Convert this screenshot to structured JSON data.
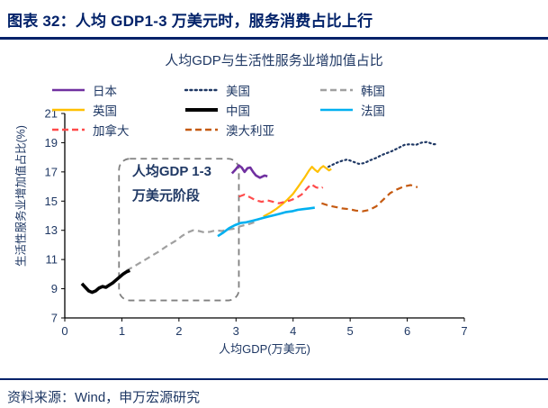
{
  "header": {
    "title": "图表 32：人均 GDP1-3 万美元时，服务消费占比上行"
  },
  "footer": {
    "source": "资料来源：Wind，申万宏源研究"
  },
  "colors": {
    "accent_navy": "#002169",
    "chart_text_navy": "#1F3864",
    "axis_black": "#000000",
    "annotation_gray": "#808080"
  },
  "chart_data": {
    "type": "line",
    "title": "人均GDP与生活性服务业增加值占比",
    "xlabel": "人均GDP(万美元)",
    "ylabel": "生活性服务业增加值占比(%)",
    "xlim": [
      0,
      7
    ],
    "ylim": [
      7,
      21
    ],
    "xticks": [
      0,
      1,
      2,
      3,
      4,
      5,
      6,
      7
    ],
    "yticks": [
      7,
      9,
      11,
      13,
      15,
      17,
      19,
      21
    ],
    "grid": false,
    "legend_position": "top",
    "annotation": {
      "text_lines": [
        "人均GDP 1-3",
        "万美元阶段"
      ],
      "box": {
        "x0": 0.95,
        "x1": 3.05,
        "y0": 8.2,
        "y1": 17.9
      },
      "style": "dashed-rounded",
      "color": "#808080"
    },
    "series": [
      {
        "name": "日本",
        "color": "#7030A0",
        "style": "solid",
        "width": 2.6,
        "points": [
          [
            2.93,
            16.9
          ],
          [
            3.0,
            17.2
          ],
          [
            3.05,
            17.45
          ],
          [
            3.1,
            17.3
          ],
          [
            3.15,
            17.0
          ],
          [
            3.2,
            17.25
          ],
          [
            3.25,
            17.3
          ],
          [
            3.3,
            17.0
          ],
          [
            3.35,
            16.75
          ],
          [
            3.42,
            16.6
          ],
          [
            3.5,
            16.75
          ],
          [
            3.55,
            16.7
          ]
        ]
      },
      {
        "name": "美国",
        "color": "#1F3864",
        "style": "dotted",
        "width": 2.2,
        "points": [
          [
            4.62,
            17.35
          ],
          [
            4.75,
            17.6
          ],
          [
            4.85,
            17.75
          ],
          [
            4.95,
            17.85
          ],
          [
            5.05,
            17.7
          ],
          [
            5.15,
            17.55
          ],
          [
            5.25,
            17.6
          ],
          [
            5.35,
            17.8
          ],
          [
            5.45,
            17.95
          ],
          [
            5.55,
            18.15
          ],
          [
            5.65,
            18.3
          ],
          [
            5.75,
            18.45
          ],
          [
            5.85,
            18.65
          ],
          [
            5.95,
            18.85
          ],
          [
            6.05,
            18.9
          ],
          [
            6.15,
            18.85
          ],
          [
            6.25,
            19.0
          ],
          [
            6.35,
            19.05
          ],
          [
            6.45,
            18.9
          ],
          [
            6.52,
            18.9
          ]
        ]
      },
      {
        "name": "韩国",
        "color": "#A0A0A0",
        "style": "dashed",
        "width": 2.2,
        "points": [
          [
            1.08,
            10.25
          ],
          [
            1.2,
            10.5
          ],
          [
            1.35,
            10.85
          ],
          [
            1.5,
            11.2
          ],
          [
            1.65,
            11.55
          ],
          [
            1.8,
            11.95
          ],
          [
            1.95,
            12.3
          ],
          [
            2.05,
            12.6
          ],
          [
            2.15,
            12.85
          ],
          [
            2.25,
            13.0
          ],
          [
            2.35,
            12.95
          ],
          [
            2.45,
            12.85
          ],
          [
            2.55,
            12.9
          ],
          [
            2.65,
            13.0
          ],
          [
            2.75,
            12.95
          ],
          [
            2.85,
            13.05
          ],
          [
            2.95,
            13.1
          ],
          [
            3.05,
            13.25
          ],
          [
            3.15,
            13.35
          ],
          [
            3.25,
            13.45
          ],
          [
            3.32,
            13.55
          ]
        ]
      },
      {
        "name": "英国",
        "color": "#FFC000",
        "style": "solid",
        "width": 2.2,
        "points": [
          [
            3.48,
            13.95
          ],
          [
            3.6,
            14.2
          ],
          [
            3.7,
            14.45
          ],
          [
            3.8,
            14.75
          ],
          [
            3.9,
            15.1
          ],
          [
            4.0,
            15.5
          ],
          [
            4.1,
            16.05
          ],
          [
            4.2,
            16.6
          ],
          [
            4.28,
            17.1
          ],
          [
            4.33,
            17.35
          ],
          [
            4.38,
            17.15
          ],
          [
            4.43,
            17.0
          ],
          [
            4.48,
            17.25
          ],
          [
            4.53,
            17.4
          ],
          [
            4.58,
            17.25
          ],
          [
            4.63,
            17.1
          ],
          [
            4.67,
            17.2
          ]
        ]
      },
      {
        "name": "中国",
        "color": "#000000",
        "style": "solid",
        "width": 3.6,
        "points": [
          [
            0.3,
            9.35
          ],
          [
            0.36,
            9.1
          ],
          [
            0.42,
            8.85
          ],
          [
            0.48,
            8.75
          ],
          [
            0.54,
            8.85
          ],
          [
            0.6,
            9.05
          ],
          [
            0.66,
            9.15
          ],
          [
            0.72,
            9.1
          ],
          [
            0.78,
            9.25
          ],
          [
            0.84,
            9.4
          ],
          [
            0.9,
            9.6
          ],
          [
            0.96,
            9.8
          ],
          [
            1.02,
            10.0
          ],
          [
            1.08,
            10.15
          ],
          [
            1.14,
            10.25
          ]
        ]
      },
      {
        "name": "法国",
        "color": "#00B0F0",
        "style": "solid",
        "width": 2.6,
        "points": [
          [
            2.68,
            12.6
          ],
          [
            2.78,
            12.85
          ],
          [
            2.88,
            13.15
          ],
          [
            2.98,
            13.35
          ],
          [
            3.08,
            13.5
          ],
          [
            3.18,
            13.55
          ],
          [
            3.28,
            13.65
          ],
          [
            3.38,
            13.75
          ],
          [
            3.48,
            13.85
          ],
          [
            3.58,
            13.95
          ],
          [
            3.68,
            14.05
          ],
          [
            3.78,
            14.15
          ],
          [
            3.88,
            14.25
          ],
          [
            3.98,
            14.3
          ],
          [
            4.08,
            14.4
          ],
          [
            4.18,
            14.45
          ],
          [
            4.28,
            14.5
          ],
          [
            4.38,
            14.55
          ]
        ]
      },
      {
        "name": "加拿大",
        "color": "#FF4B4B",
        "style": "dashed",
        "width": 2.2,
        "points": [
          [
            3.05,
            15.3
          ],
          [
            3.15,
            15.45
          ],
          [
            3.25,
            15.25
          ],
          [
            3.35,
            15.05
          ],
          [
            3.45,
            14.95
          ],
          [
            3.55,
            15.05
          ],
          [
            3.65,
            14.95
          ],
          [
            3.75,
            14.85
          ],
          [
            3.85,
            14.95
          ],
          [
            3.95,
            15.05
          ],
          [
            4.05,
            15.2
          ],
          [
            4.15,
            15.45
          ],
          [
            4.25,
            15.9
          ],
          [
            4.32,
            16.15
          ],
          [
            4.4,
            15.95
          ],
          [
            4.48,
            15.85
          ],
          [
            4.52,
            15.95
          ]
        ]
      },
      {
        "name": "澳大利亚",
        "color": "#C55A11",
        "style": "dashed",
        "width": 2.2,
        "points": [
          [
            4.5,
            14.85
          ],
          [
            4.62,
            14.7
          ],
          [
            4.74,
            14.6
          ],
          [
            4.86,
            14.5
          ],
          [
            4.98,
            14.45
          ],
          [
            5.1,
            14.35
          ],
          [
            5.22,
            14.3
          ],
          [
            5.34,
            14.4
          ],
          [
            5.46,
            14.65
          ],
          [
            5.58,
            15.1
          ],
          [
            5.7,
            15.55
          ],
          [
            5.82,
            15.8
          ],
          [
            5.94,
            16.0
          ],
          [
            6.06,
            16.1
          ],
          [
            6.18,
            15.95
          ]
        ]
      }
    ]
  }
}
